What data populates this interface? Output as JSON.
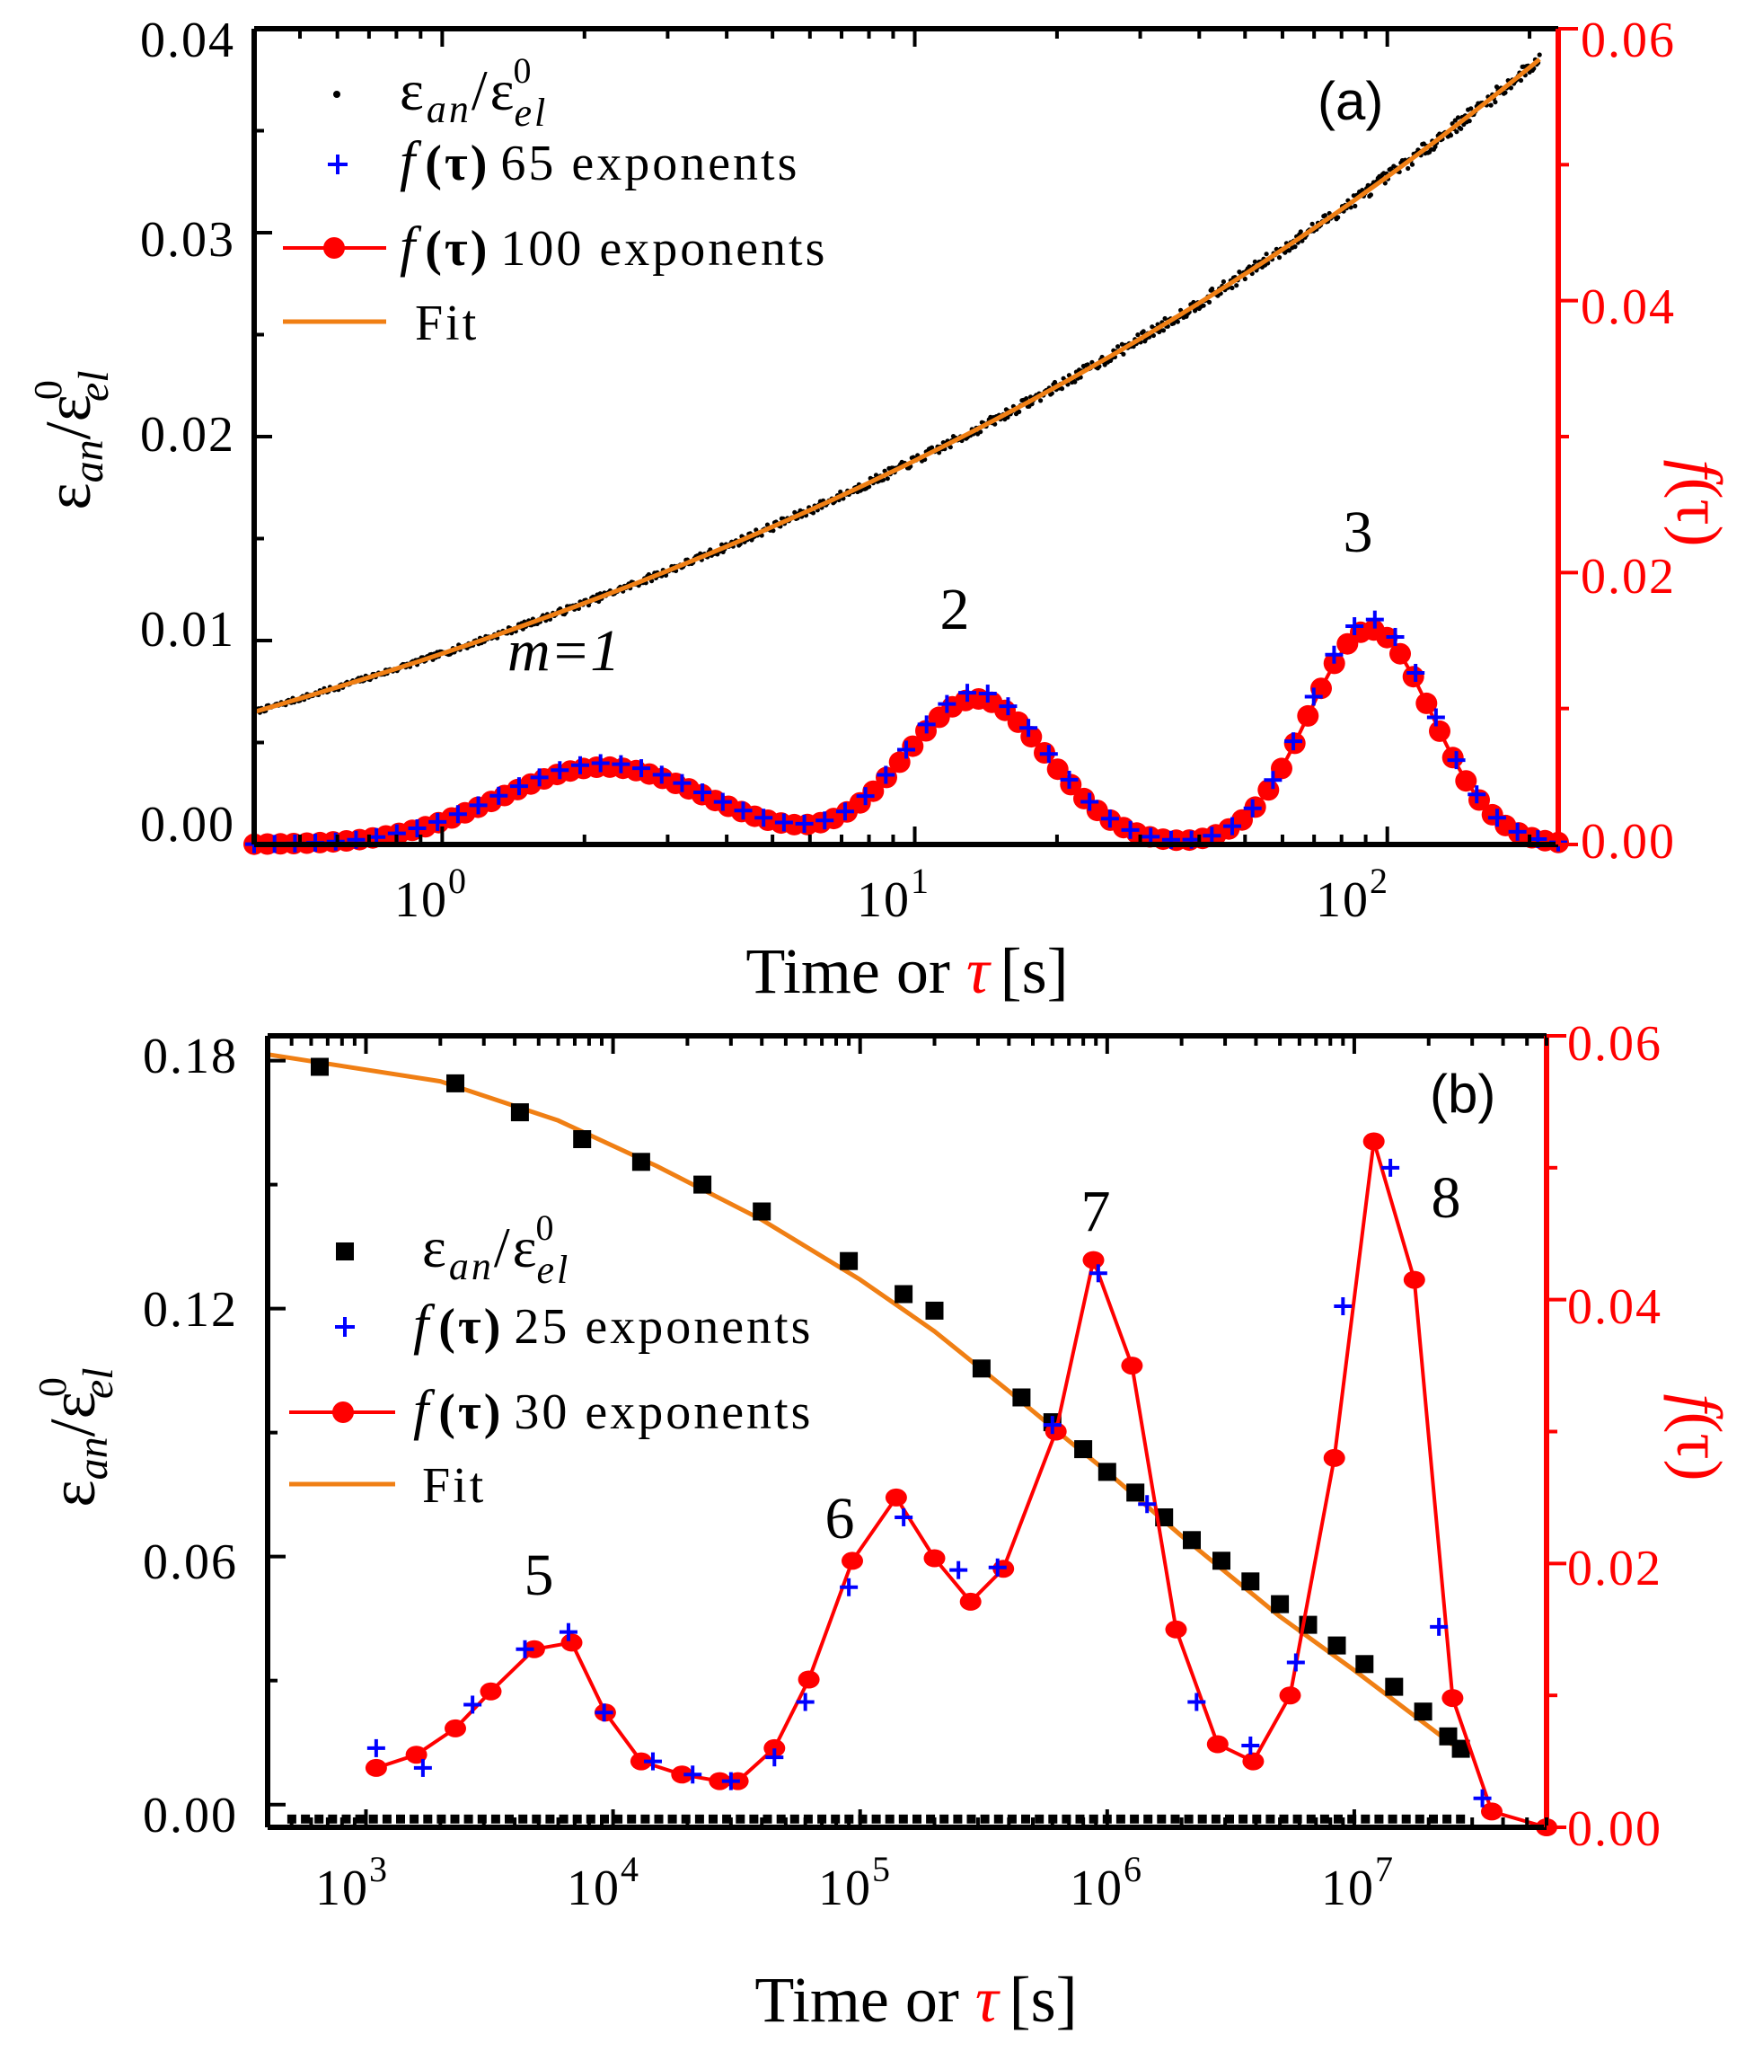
{
  "chart_data": [
    {
      "type": "scatter",
      "panel": "(a)",
      "xscale": "log",
      "xlim": [
        0.4,
        230
      ],
      "ylim_left": [
        0,
        0.04
      ],
      "ylim_right": [
        0,
        0.06
      ],
      "xlabel": "Time or τ [s]",
      "xlabel_main": "Time or ",
      "xlabel_tau": "τ",
      "xlabel_unit": "[s]",
      "ylabel_left": "εan/ε0el",
      "ylabel_right": "f(τ)",
      "x_ticks": [
        {
          "base": "10",
          "exp": "0",
          "value": 1
        },
        {
          "base": "10",
          "exp": "1",
          "value": 10
        },
        {
          "base": "10",
          "exp": "2",
          "value": 100
        }
      ],
      "y_ticks_left": [
        "0.00",
        "0.01",
        "0.02",
        "0.03",
        "0.04"
      ],
      "y_ticks_right": [
        "0.00",
        "0.02",
        "0.04",
        "0.06"
      ],
      "peak_labels": [
        {
          "text": "m=1",
          "tau": 1.7,
          "f": 0.0155
        },
        {
          "text": "2",
          "tau": 13.5,
          "f": 0.0178
        },
        {
          "text": "3",
          "tau": 92,
          "f": 0.0228
        }
      ],
      "legend": [
        {
          "symbol": "dot",
          "eps": "ε",
          "sub": "an",
          "sup": "0",
          "sub2": "el"
        },
        {
          "symbol": "plus",
          "f": "f",
          "tau": "(τ)",
          "text": "65 exponents"
        },
        {
          "symbol": "line-dot",
          "f": "f",
          "tau": "(τ)",
          "text": "100 exponents"
        },
        {
          "symbol": "line",
          "text": "Fit"
        }
      ],
      "strain_data": {
        "model": "ratio",
        "t_start": 0.4,
        "t_end": 210,
        "y_start": 0.0065,
        "y_end": 0.0385,
        "noise": 0.0004
      },
      "fit": {
        "t_start": 0.4,
        "t_end": 210
      },
      "f_100": {
        "n_points": 100,
        "tau_start": 0.4,
        "tau_end": 230
      },
      "f_65": {
        "n_points": 65,
        "tau_start": 0.4,
        "tau_end": 230
      },
      "peaks": [
        {
          "tau": 2.2,
          "height": 0.0057,
          "width_dec": 0.22
        },
        {
          "tau": 13.5,
          "height": 0.0107,
          "width_dec": 0.15
        },
        {
          "tau": 92,
          "height": 0.0158,
          "width_dec": 0.13
        }
      ],
      "colors": {
        "strain": "#000000",
        "f65": "#0000ff",
        "f100": "#ff0000",
        "fit": "#f07f14",
        "right_axis": "#ff0000"
      }
    },
    {
      "type": "scatter",
      "panel": "(b)",
      "xscale": "log",
      "xlim": [
        400,
        60000000
      ],
      "ylim_left": [
        -0.0055,
        0.186
      ],
      "ylim_right": [
        0,
        0.06
      ],
      "xlabel": "Time or τ [s]",
      "xlabel_main": "Time or ",
      "xlabel_tau": "τ",
      "xlabel_unit": "[s]",
      "ylabel_left": "εan/ε0el",
      "ylabel_right": "f(τ)",
      "x_ticks": [
        {
          "base": "10",
          "exp": "3",
          "value": 1000
        },
        {
          "base": "10",
          "exp": "4",
          "value": 10000
        },
        {
          "base": "10",
          "exp": "5",
          "value": 100000
        },
        {
          "base": "10",
          "exp": "6",
          "value": 1000000
        },
        {
          "base": "10",
          "exp": "7",
          "value": 10000000
        }
      ],
      "y_ticks_left": [
        "0.00",
        "0.06",
        "0.12",
        "0.18"
      ],
      "y_ticks_right": [
        "0.00",
        "0.02",
        "0.04",
        "0.06"
      ],
      "peak_labels": [
        {
          "text": "5",
          "tau": 5000,
          "f": 0.0175
        },
        {
          "text": "6",
          "tau": 120000,
          "f": 0.0272
        },
        {
          "text": "7",
          "tau": 950000,
          "f": 0.0475
        },
        {
          "text": "8",
          "tau": 22000000,
          "f": 0.0515
        }
      ],
      "legend": [
        {
          "symbol": "square",
          "eps": "ε",
          "sub": "an",
          "sup": "0",
          "sub2": "el"
        },
        {
          "symbol": "plus",
          "f": "f",
          "tau": "(τ)",
          "text": "25 exponents"
        },
        {
          "symbol": "line-dot",
          "f": "f",
          "tau": "(τ)",
          "text": "30 exponents"
        },
        {
          "symbol": "line",
          "text": "Fit"
        }
      ],
      "strain_points": {
        "t": [
          650,
          2300,
          4200,
          7500,
          13000,
          23000,
          40000,
          90000,
          150000,
          200000,
          310000,
          450000,
          600000,
          800000,
          1000000,
          1300000,
          1700000,
          2200000,
          2900000,
          3800000,
          5000000,
          6500000,
          8500000,
          11000000,
          14500000,
          19000000,
          24000000,
          27000000
        ],
        "y": [
          0.1785,
          0.1745,
          0.1675,
          0.161,
          0.1555,
          0.15,
          0.1435,
          0.1315,
          0.1235,
          0.1195,
          0.1055,
          0.0985,
          0.0925,
          0.086,
          0.0805,
          0.0755,
          0.0695,
          0.064,
          0.059,
          0.054,
          0.0485,
          0.0435,
          0.0385,
          0.034,
          0.0285,
          0.0225,
          0.0165,
          0.0135
        ]
      },
      "fit": {
        "t": [
          400,
          2000,
          6000,
          15000,
          40000,
          100000,
          200000,
          400000,
          700000,
          1000000,
          2000000,
          5000000,
          10000000,
          25000000
        ],
        "y": [
          0.1815,
          0.175,
          0.1655,
          0.1545,
          0.1415,
          0.127,
          0.1145,
          0.1,
          0.088,
          0.0805,
          0.065,
          0.0455,
          0.0325,
          0.0145
        ]
      },
      "f_30": {
        "tau": [
          1100,
          1600,
          2300,
          3200,
          4800,
          6800,
          9300,
          13000,
          19000,
          27000,
          32000,
          45000,
          62000,
          93000,
          140000,
          200000,
          280000,
          380000,
          620000,
          880000,
          1260000,
          1900000,
          2800000,
          3900000,
          5500000,
          8300000,
          12000000,
          17500000,
          25000000,
          36000000,
          60000000
        ],
        "f": [
          0.0045,
          0.0055,
          0.0075,
          0.0103,
          0.0135,
          0.014,
          0.0087,
          0.005,
          0.004,
          0.0035,
          0.0035,
          0.006,
          0.0112,
          0.0202,
          0.025,
          0.0204,
          0.0171,
          0.0196,
          0.03,
          0.043,
          0.035,
          0.015,
          0.0063,
          0.005,
          0.01,
          0.028,
          0.052,
          0.0415,
          0.0098,
          0.0012,
          0
        ]
      },
      "f_25": {
        "tau": [
          1100,
          1700,
          2700,
          4400,
          6600,
          9200,
          14500,
          21000,
          30000,
          45000,
          60000,
          90000,
          150000,
          250000,
          360000,
          600000,
          920000,
          1450000,
          2300000,
          3800000,
          5800000,
          9000000,
          14000000,
          22000000,
          33000000
        ],
        "f": [
          0.006,
          0.0045,
          0.0093,
          0.0135,
          0.0148,
          0.0087,
          0.005,
          0.004,
          0.0035,
          0.0053,
          0.0095,
          0.0182,
          0.0235,
          0.0195,
          0.0197,
          0.0305,
          0.042,
          0.0245,
          0.0095,
          0.0062,
          0.0125,
          0.0395,
          0.05,
          0.0152,
          0.0022
        ]
      },
      "colors": {
        "strain": "#000000",
        "f25": "#0000ff",
        "f30": "#ff0000",
        "fit": "#f07f14",
        "right_axis": "#ff0000"
      }
    }
  ]
}
